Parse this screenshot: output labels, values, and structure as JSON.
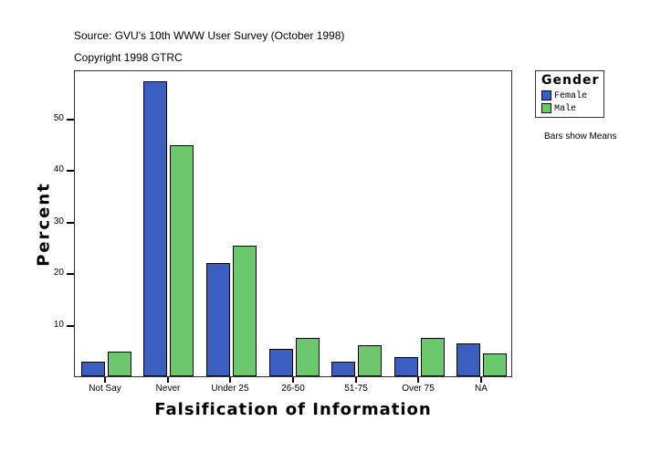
{
  "header": {
    "source": "Source: GVU's 10th WWW User Survey (October 1998)",
    "copyright": "Copyright 1998 GTRC"
  },
  "legend": {
    "title": "Gender",
    "items": [
      {
        "label": "Female",
        "color": "#3a5fc0"
      },
      {
        "label": "Male",
        "color": "#6cc86c"
      }
    ]
  },
  "note": "Bars show Means",
  "chart_data": {
    "type": "bar",
    "title": "Source: GVU's 10th WWW User Survey (October 1998)",
    "subtitle": "Copyright 1998 GTRC",
    "xlabel": "Falsification of Information",
    "ylabel": "Percent",
    "categories": [
      "Not Say",
      "Never",
      "Under 25",
      "26-50",
      "51-75",
      "Over 75",
      "NA"
    ],
    "series": [
      {
        "name": "Female",
        "color": "#3a5fc0",
        "values": [
          2.8,
          57.2,
          21.9,
          5.3,
          2.8,
          3.7,
          6.3
        ]
      },
      {
        "name": "Male",
        "color": "#6cc86c",
        "values": [
          4.8,
          44.8,
          25.3,
          7.4,
          6.0,
          7.4,
          4.4
        ]
      }
    ],
    "yticks": [
      10,
      20,
      30,
      40,
      50
    ],
    "ylim": [
      0,
      59.5
    ],
    "grid": false,
    "legend_position": "right"
  }
}
